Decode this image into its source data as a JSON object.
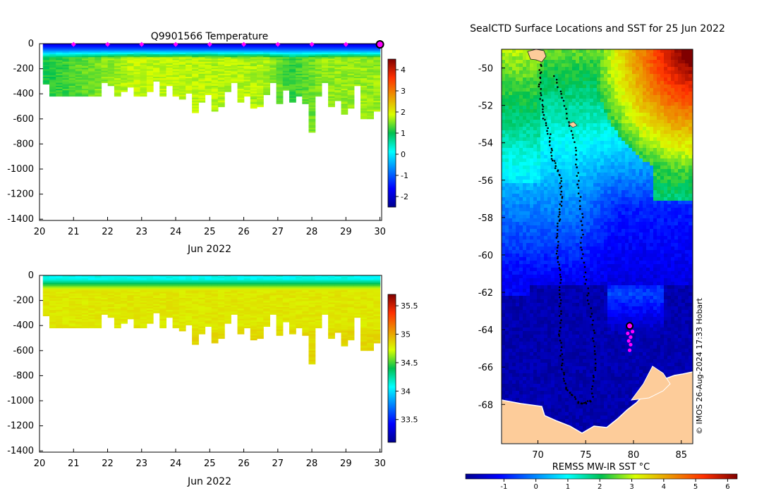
{
  "chart_data": [
    {
      "type": "heatmap",
      "title": "Q9901566  Temperature",
      "xlabel": "Jun 2022",
      "ylabel": "",
      "xlim": [
        20,
        30.05
      ],
      "ylim": [
        -1410,
        0
      ],
      "x_ticks": [
        "20",
        "21",
        "22",
        "23",
        "24",
        "25",
        "26",
        "27",
        "28",
        "29",
        "30"
      ],
      "y_ticks": [
        "0",
        "-200",
        "-400",
        "-600",
        "-800",
        "-1000",
        "-1200",
        "-1400"
      ],
      "colorbar": {
        "range": [
          -2.5,
          4.5
        ],
        "ticks": [
          "-2",
          "-1",
          "0",
          "1",
          "2",
          "3",
          "4"
        ]
      },
      "profile_max_depths": [
        320,
        410,
        410,
        410,
        410,
        410,
        410,
        410,
        410,
        310,
        330,
        420,
        380,
        340,
        420,
        410,
        380,
        300,
        420,
        330,
        420,
        440,
        390,
        550,
        460,
        400,
        540,
        500,
        380,
        310,
        460,
        420,
        510,
        500,
        400,
        310,
        480,
        370,
        460,
        420,
        480,
        700,
        420,
        310,
        500,
        450,
        560,
        510,
        330,
        590,
        590,
        540
      ],
      "near_surface_temp": -1.8,
      "deep_temp_by_day": [
        {
          "day": 20.5,
          "value": 1.2
        },
        {
          "day": 22.8,
          "value": 1.8
        },
        {
          "day": 26.5,
          "value": 1.7
        },
        {
          "day": 27.3,
          "value": 1.2
        },
        {
          "day": 28.3,
          "value": 1.6
        },
        {
          "day": 30.0,
          "value": 1.6
        }
      ],
      "surface_markers_days": [
        21,
        22,
        23,
        24,
        25,
        26,
        27,
        28,
        29
      ],
      "last_position_day": 30
    },
    {
      "type": "heatmap",
      "title": "",
      "xlabel": "Jun 2022",
      "ylabel": "",
      "xlim": [
        20,
        30.05
      ],
      "ylim": [
        -1410,
        0
      ],
      "x_ticks": [
        "20",
        "21",
        "22",
        "23",
        "24",
        "25",
        "26",
        "27",
        "28",
        "29",
        "30"
      ],
      "y_ticks": [
        "0",
        "-200",
        "-400",
        "-600",
        "-800",
        "-1000",
        "-1200",
        "-1400"
      ],
      "colorbar": {
        "range": [
          33.1,
          35.7
        ],
        "ticks": [
          "33.5",
          "34",
          "34.5",
          "35",
          "35.5"
        ]
      },
      "surface_salinity": 34.1,
      "deep_salinity": 34.8
    },
    {
      "type": "heatmap",
      "title": "SealCTD Surface Locations and SST for 25 Jun 2022",
      "xlabel": "REMSS MW-IR SST °C",
      "ylabel": "",
      "xlim": [
        66.2,
        86.2
      ],
      "ylim": [
        -70.1,
        -49.0
      ],
      "x_ticks": [
        "70",
        "75",
        "80",
        "85"
      ],
      "y_ticks": [
        "-50",
        "-52",
        "-54",
        "-56",
        "-58",
        "-60",
        "-62",
        "-64",
        "-66",
        "-68"
      ],
      "colorbar": {
        "range": [
          -2.2,
          6.3
        ],
        "ticks": [
          "-1",
          "0",
          "1",
          "2",
          "3",
          "4",
          "5",
          "6"
        ]
      },
      "seal_track": [
        {
          "lon": 70.3,
          "lat": -49.8
        },
        {
          "lon": 70.2,
          "lat": -51.0
        },
        {
          "lon": 70.5,
          "lat": -52.4
        },
        {
          "lon": 71.2,
          "lat": -53.6
        },
        {
          "lon": 71.5,
          "lat": -54.8
        },
        {
          "lon": 72.3,
          "lat": -55.8
        },
        {
          "lon": 72.5,
          "lat": -57.0
        },
        {
          "lon": 72.2,
          "lat": -58.2
        },
        {
          "lon": 72.0,
          "lat": -59.6
        },
        {
          "lon": 72.3,
          "lat": -61.0
        },
        {
          "lon": 72.4,
          "lat": -62.6
        },
        {
          "lon": 72.3,
          "lat": -64.2
        },
        {
          "lon": 72.5,
          "lat": -65.8
        },
        {
          "lon": 73.0,
          "lat": -67.2
        },
        {
          "lon": 74.5,
          "lat": -68.0
        },
        {
          "lon": 75.6,
          "lat": -67.8
        },
        {
          "lon": 76.0,
          "lat": -66.0
        },
        {
          "lon": 75.8,
          "lat": -64.0
        },
        {
          "lon": 75.2,
          "lat": -62.0
        },
        {
          "lon": 74.6,
          "lat": -60.0
        },
        {
          "lon": 74.6,
          "lat": -58.0
        },
        {
          "lon": 74.2,
          "lat": -56.0
        },
        {
          "lon": 73.8,
          "lat": -54.0
        },
        {
          "lon": 72.8,
          "lat": -52.0
        },
        {
          "lon": 71.6,
          "lat": -50.2
        }
      ],
      "recent_positions": [
        {
          "lon": 79.6,
          "lat": -63.9
        },
        {
          "lon": 79.9,
          "lat": -64.1
        },
        {
          "lon": 79.4,
          "lat": -64.2
        },
        {
          "lon": 79.7,
          "lat": -64.4
        },
        {
          "lon": 79.5,
          "lat": -64.6
        },
        {
          "lon": 79.7,
          "lat": -64.8
        },
        {
          "lon": 79.6,
          "lat": -65.1
        }
      ],
      "current_position": {
        "lon": 79.6,
        "lat": -63.8
      }
    }
  ],
  "credit": "© IMOS 26-Aug-2024 17:33 Hobart",
  "colors": {
    "land": "#fdcc9a",
    "track": "#000000",
    "marker": "#ff00ff"
  }
}
